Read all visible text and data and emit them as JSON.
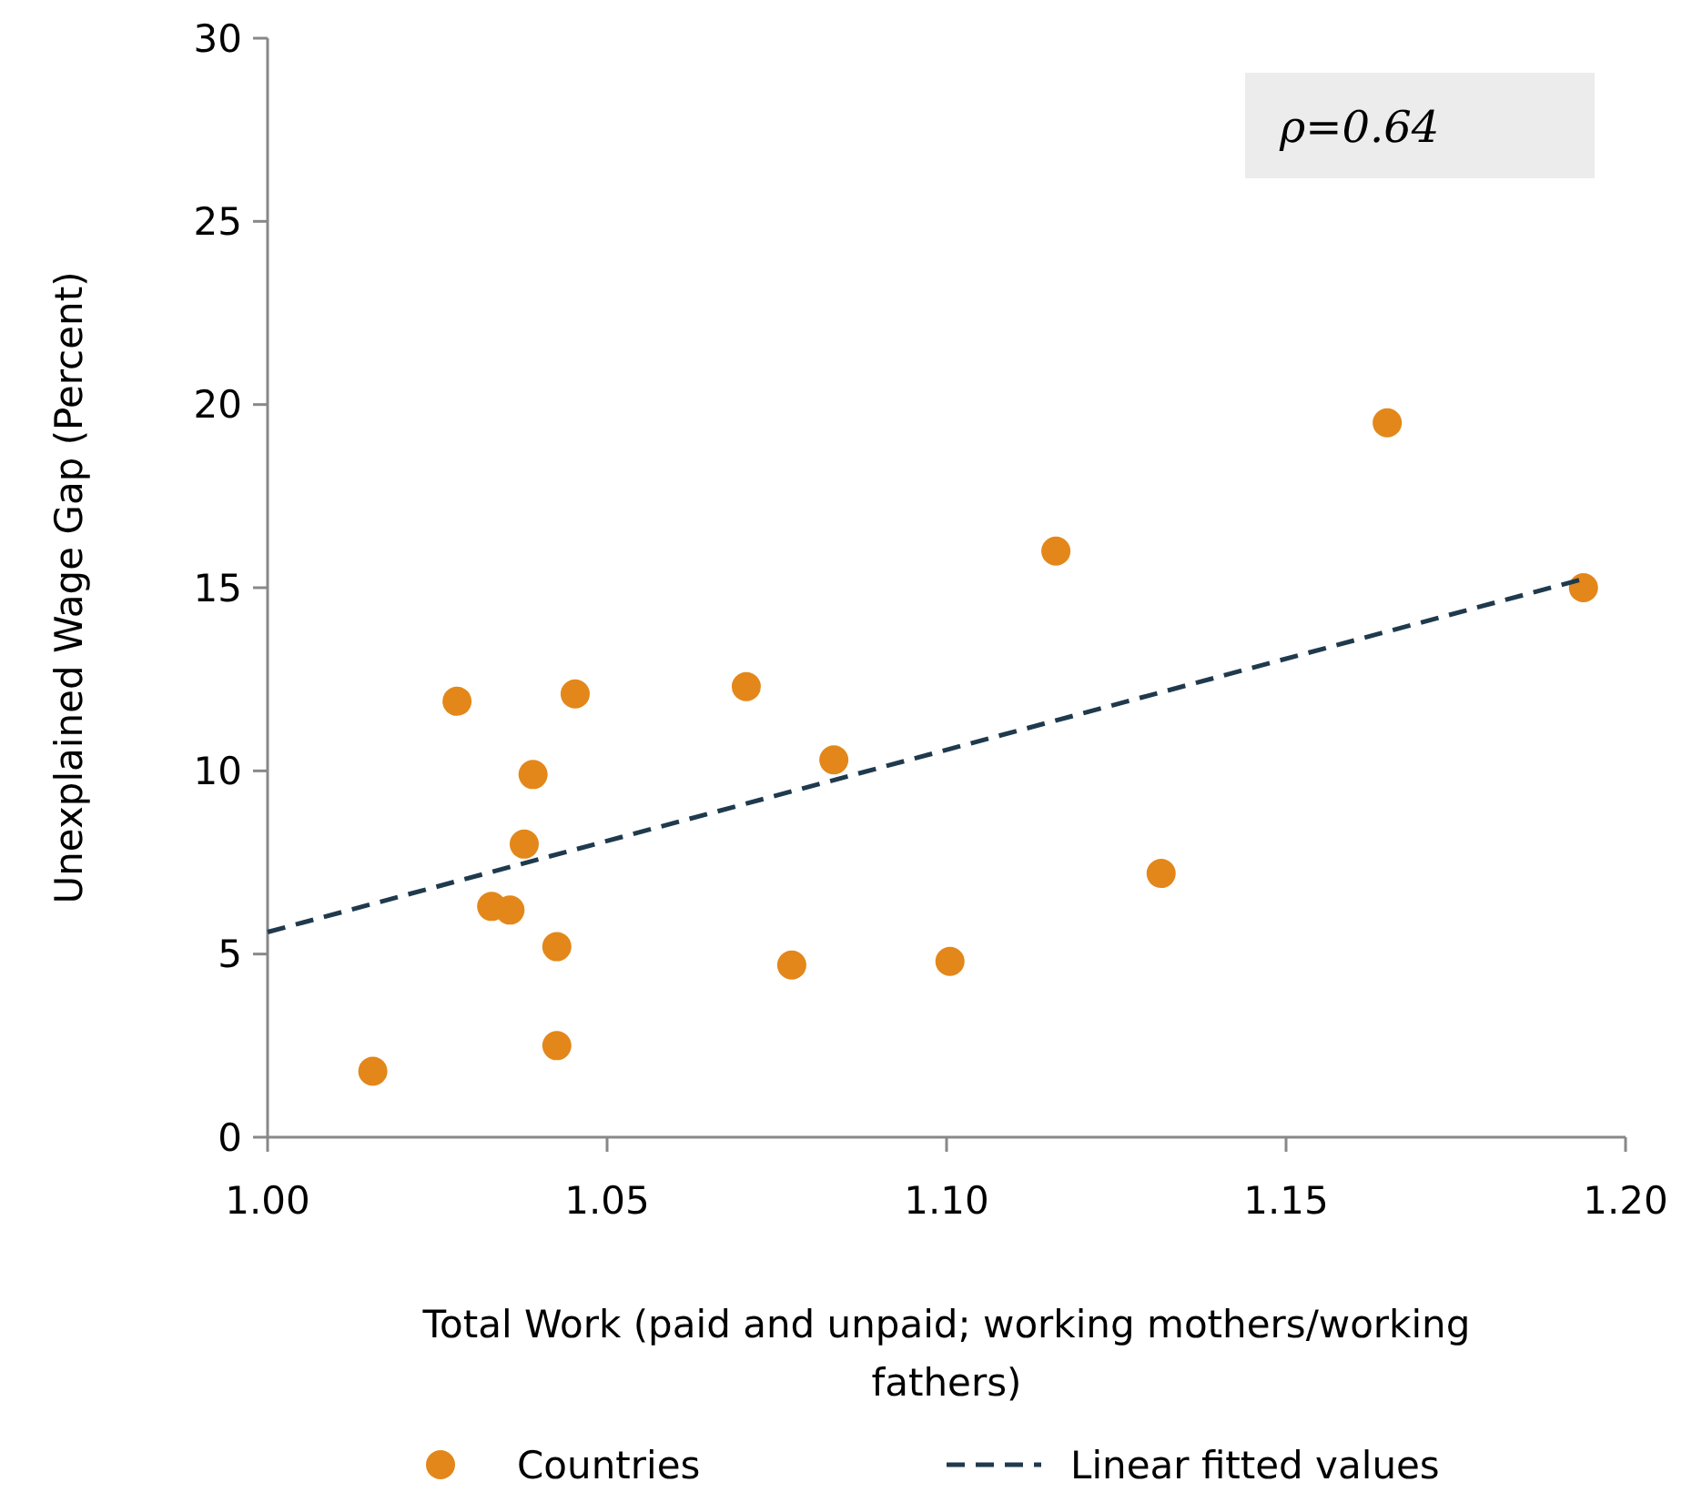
{
  "chart_data": {
    "type": "scatter",
    "xlabel": "Total Work (paid and unpaid; working mothers/working fathers)",
    "ylabel": "Unexplained Wage Gap (Percent)",
    "annotations": [
      "ρ=0.64"
    ],
    "xlim": [
      1.0,
      1.2
    ],
    "ylim": [
      0,
      30
    ],
    "xticks": [
      {
        "value": 1.0,
        "label": "1.00"
      },
      {
        "value": 1.05,
        "label": "1.05"
      },
      {
        "value": 1.1,
        "label": "1.10"
      },
      {
        "value": 1.15,
        "label": "1.15"
      },
      {
        "value": 1.2,
        "label": "1.20"
      }
    ],
    "yticks": [
      0,
      5,
      10,
      15,
      20,
      25,
      30
    ],
    "grid": false,
    "legend": "bottom",
    "marker": "circle",
    "series": [
      {
        "name": "Countries",
        "color": "#e3871a",
        "x": [
          1.0155,
          1.0279,
          1.033,
          1.0357,
          1.0378,
          1.0391,
          1.0426,
          1.0426,
          1.0453,
          1.0705,
          1.0772,
          1.0834,
          1.1005,
          1.1161,
          1.1316,
          1.1649,
          1.1938
        ],
        "values": [
          1.8,
          11.9,
          6.3,
          6.2,
          8.0,
          9.9,
          5.2,
          2.5,
          12.1,
          12.3,
          4.7,
          10.3,
          4.8,
          16.0,
          7.2,
          19.5,
          15.0
        ]
      },
      {
        "name": "Linear fitted values",
        "type": "line",
        "color": "#1f3a4d",
        "line_style": "dashed",
        "marker": "none",
        "x": [
          1.0,
          1.194
        ],
        "values": [
          5.6,
          15.25
        ]
      }
    ]
  }
}
